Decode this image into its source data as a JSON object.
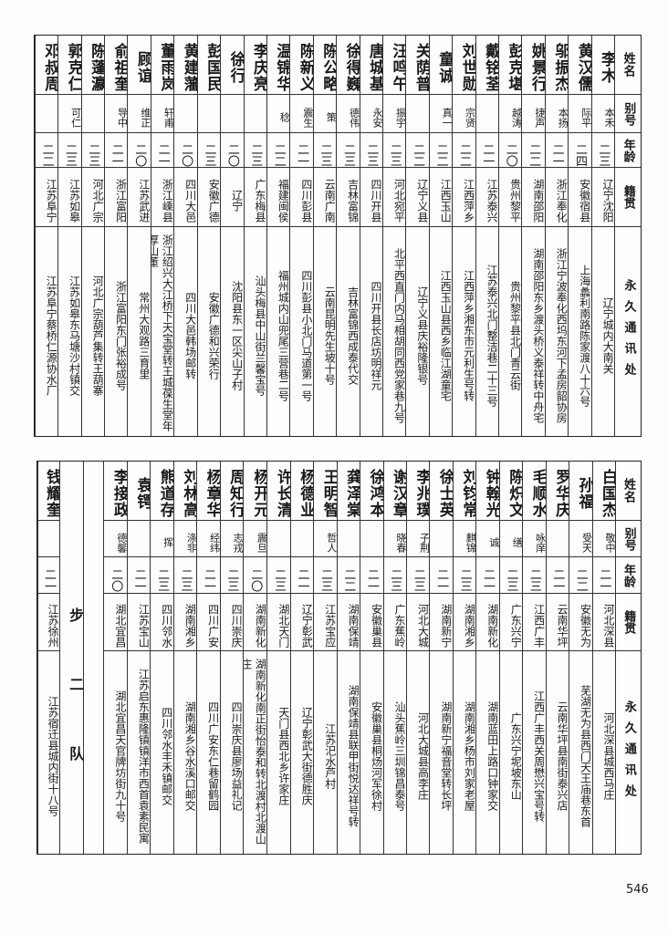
{
  "headers": {
    "name": "姓名",
    "alias": "别号",
    "age": "年龄",
    "origin": "籍贯",
    "address": "永久通讯处"
  },
  "top_table": [
    {
      "name": "李木",
      "alias": "本禾",
      "age": "二三",
      "origin": "辽宁沈阳",
      "address": "辽宁城内大南关"
    },
    {
      "name": "黄汉儒",
      "alias": "际平",
      "age": "二四",
      "origin": "安徽宿县",
      "address": "上海蠡利南路陈家渡八十六号"
    },
    {
      "name": "邬振杰",
      "alias": "本扬",
      "age": "二一",
      "origin": "浙江奉化",
      "address": "浙江宁波奉化西坞东河下孟房韶协房"
    },
    {
      "name": "姚景行",
      "alias": "捷声",
      "age": "二二",
      "origin": "湖南邵阳",
      "address": "湖南邵阳东乡渡头桥义泰祥转中舟宅"
    },
    {
      "name": "彭克堪",
      "alias": "越涛",
      "age": "二〇",
      "origin": "贵州黎平",
      "address": "贵州黎平县北门青云街"
    },
    {
      "name": "戴铭荃",
      "alias": "",
      "age": "二一",
      "origin": "江苏泰兴",
      "address": "江苏泰兴北门整洁巷二十三号"
    },
    {
      "name": "刘世勋",
      "alias": "宗贤",
      "age": "二二",
      "origin": "江西萍乡",
      "address": "江西萍乡湘东市元利生号转"
    },
    {
      "name": "童诚",
      "alias": "真一",
      "age": "二二",
      "origin": "江西玉山",
      "address": "江西玉山县西乡临江湖童宅"
    },
    {
      "name": "关荫普",
      "alias": "",
      "age": "二二",
      "origin": "辽宁义县",
      "address": "辽宁义县庆裕隆银号"
    },
    {
      "name": "汪鸣午",
      "alias": "振宇",
      "age": "二三",
      "origin": "河北宛平",
      "address": "北平西直门内马相胡同西党家巷九号"
    },
    {
      "name": "唐城基",
      "alias": "永安",
      "age": "二三",
      "origin": "四川开县",
      "address": "四川开县长店坊明祥元"
    },
    {
      "name": "徐得巍",
      "alias": "德伟",
      "age": "二三",
      "origin": "吉林富锦",
      "address": "吉林富锦西成泰代交"
    },
    {
      "name": "陈公略",
      "alias": "策",
      "age": "二三",
      "origin": "云南广南",
      "address": "云南昆明先生坡十号"
    },
    {
      "name": "陈新义",
      "alias": "震生",
      "age": "二一",
      "origin": "四川彭县",
      "address": "四川彭县小北门马道第一号"
    },
    {
      "name": "温锦华",
      "alias": "稔",
      "age": "二二",
      "origin": "福建闽侯",
      "address": "福州城内山兜尾三营巷二号"
    },
    {
      "name": "李庆亮",
      "alias": "",
      "age": "二三",
      "origin": "广东梅县",
      "address": "汕头梅县中山街兰馨宝号"
    },
    {
      "name": "徐行",
      "alias": "",
      "age": "二〇",
      "origin": "辽宁",
      "address": "沈阳县东一区尖山子村"
    },
    {
      "name": "彭国民",
      "alias": "",
      "age": "二三",
      "origin": "安徽广德",
      "address": "安徽广德和兴荣行"
    },
    {
      "name": "黄建藩",
      "alias": "",
      "age": "二〇",
      "origin": "四川大邑",
      "address": "四川大邑韩场邮转"
    },
    {
      "name": "董雨岚",
      "alias": "轩甫",
      "age": "二一",
      "origin": "浙江嵊县",
      "address": "浙江绍兴大江桥下天宝堂转王城葆生堂年厚山董"
    },
    {
      "name": "顾谊",
      "alias": "维正",
      "age": "二〇",
      "origin": "江苏武进",
      "address": "常州大观路三育里"
    },
    {
      "name": "俞祖奎",
      "alias": "导中",
      "age": "二一",
      "origin": "浙江富阳",
      "address": "浙江富阳东门张裕成号"
    },
    {
      "name": "陈蓬瀛",
      "alias": "",
      "age": "二三",
      "origin": "河北广宗",
      "address": "河北广宗葫芦集转王葫寨"
    },
    {
      "name": "郭克仁",
      "alias": "可仁",
      "age": "二三",
      "origin": "江苏如皋",
      "address": "江苏如皋东马塘沙村镇交"
    },
    {
      "name": "邓叔周",
      "alias": "",
      "age": "二二",
      "origin": "江苏阜宁",
      "address": "江苏阜宁蔡桥仁源协水厂"
    }
  ],
  "squad_label": "步二队",
  "bottom_table": [
    {
      "name": "白国杰",
      "alias": "敬中",
      "age": "二一",
      "origin": "河北深县",
      "address": "河北深县城西马庄"
    },
    {
      "name": "孙福",
      "alias": "受天",
      "age": "二二",
      "origin": "安徽无为",
      "address": "芜湖无为县西门天王庙巷东首"
    },
    {
      "name": "罗华庆",
      "alias": "",
      "age": "二一",
      "origin": "云南华坪",
      "address": "云南华坪县南街泰兴店"
    },
    {
      "name": "毛顺水",
      "alias": "咏庠",
      "age": "二三",
      "origin": "江西广丰",
      "address": "江西广丰西关周懋兴宝号转"
    },
    {
      "name": "陈炽文",
      "alias": "缮",
      "age": "二三",
      "origin": "广东兴宁",
      "address": "广东兴宁坭坡东山"
    },
    {
      "name": "钟翰光",
      "alias": "诚",
      "age": "二一",
      "origin": "湖南新化",
      "address": "湖南蓝田上路口钟家交"
    },
    {
      "name": "刘钧常",
      "alias": "麒锦",
      "age": "二三",
      "origin": "湖南湘乡",
      "address": "湖南湘乡杨市刘家老屋"
    },
    {
      "name": "徐士英",
      "alias": "",
      "age": "二一",
      "origin": "湖南新宁",
      "address": "湖南新宁福音堂转长坪"
    },
    {
      "name": "李兆璞",
      "alias": "子荆",
      "age": "二三",
      "origin": "河北大城",
      "address": "河北大城县高李庄"
    },
    {
      "name": "谢汉章",
      "alias": "晓春",
      "age": "二三",
      "origin": "广东蕉岭",
      "address": "汕头蕉岭三圳锦昌泰号"
    },
    {
      "name": "徐鸿本",
      "alias": "",
      "age": "二一",
      "origin": "安徽巢县",
      "address": "安徽巢县桐炀河军徐村"
    },
    {
      "name": "龚泽棠",
      "alias": "",
      "age": "二二",
      "origin": "湖南保靖",
      "address": "湖南保靖县联甲街悦达祥号转"
    },
    {
      "name": "王明智",
      "alias": "哲人",
      "age": "二三",
      "origin": "江苏宝应",
      "address": "江苏汜水芦村"
    },
    {
      "name": "杨德业",
      "alias": "",
      "age": "二一",
      "origin": "辽宁彰武",
      "address": "辽宁彰武大街德胜庆"
    },
    {
      "name": "许长清",
      "alias": "",
      "age": "二三",
      "origin": "湖北天门",
      "address": "天门县西北乡许家庄"
    },
    {
      "name": "杨开元",
      "alias": "震旦",
      "age": "二〇",
      "origin": "湖南新化",
      "address": "湖南新化南正街怡泰和转北渡村北渡山庄"
    },
    {
      "name": "周知行",
      "alias": "志戎",
      "age": "二三",
      "origin": "四川崇庆",
      "address": "四川崇庆县廖场益礼记"
    },
    {
      "name": "杨章华",
      "alias": "经纬",
      "age": "二一",
      "origin": "四川广安",
      "address": "四川广安东仁巷留鹤园"
    },
    {
      "name": "刘林高",
      "alias": "涤非",
      "age": "二三",
      "origin": "湖南湘乡",
      "address": "湖南湘乡谷水溪口邮交"
    },
    {
      "name": "熊道存",
      "alias": "挥",
      "age": "二三",
      "origin": "四川邻水",
      "address": "四川邻水丰禾镇邮交"
    },
    {
      "name": "袁锷",
      "alias": "",
      "age": "二一",
      "origin": "江苏宝山",
      "address": "江苏启东惠隆镇镇洋市西首袁素民寓"
    },
    {
      "name": "李接政",
      "alias": "德馨",
      "age": "二〇",
      "origin": "湖北宜昌",
      "address": "湖北宜昌天官牌坊街九十号"
    }
  ],
  "bottom_extra": [
    {
      "name": "钱耀奎",
      "alias": "",
      "age": "二一",
      "origin": "江苏徐州",
      "address": "江苏宿迁县城内街十八号"
    }
  ],
  "page_number": "546"
}
